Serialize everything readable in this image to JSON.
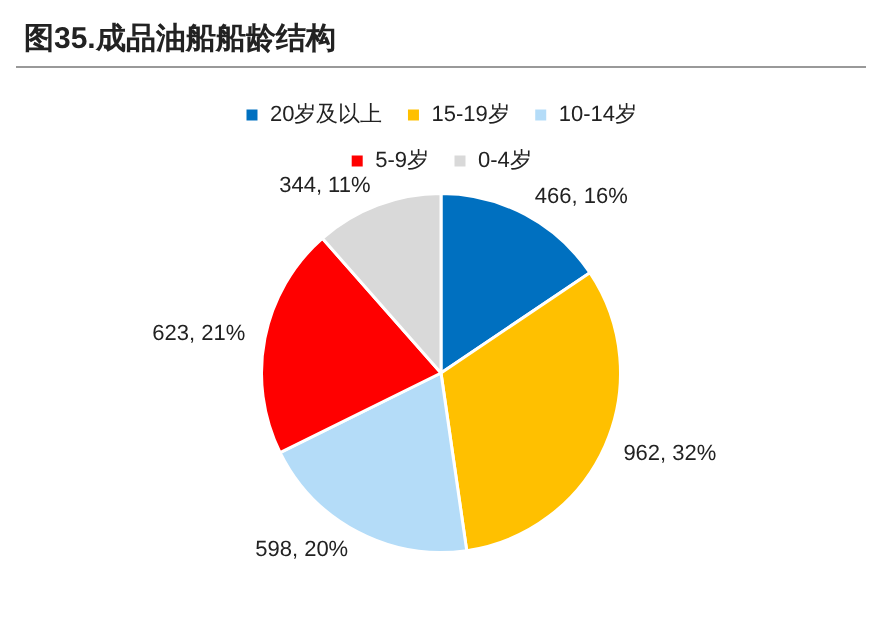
{
  "chart_data": {
    "type": "pie",
    "title": "图35.成品油船船龄结构",
    "categories": [
      "20岁及以上",
      "15-19岁",
      "10-14岁",
      "5-9岁",
      "0-4岁"
    ],
    "values": [
      466,
      962,
      598,
      623,
      344
    ],
    "colors": [
      "#0070c0",
      "#ffc000",
      "#b4dcf8",
      "#ff0000",
      "#d9d9d9"
    ],
    "value_labels": [
      "466, 16%",
      "962, 32%",
      "598, 20%",
      "623, 21%",
      "344, 11%"
    ],
    "legend": "top"
  }
}
